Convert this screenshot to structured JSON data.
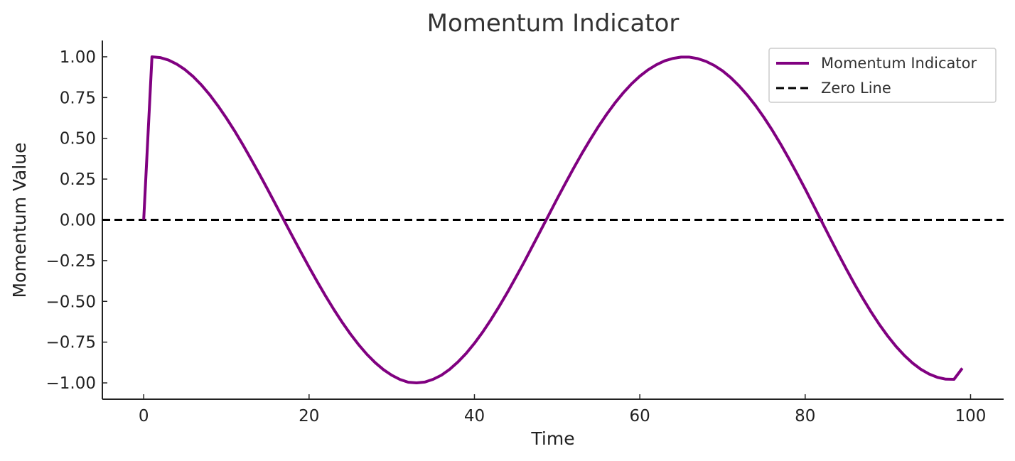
{
  "chart_data": {
    "type": "line",
    "title": "Momentum Indicator",
    "xlabel": "Time",
    "ylabel": "Momentum Value",
    "xlim": [
      -5,
      104
    ],
    "ylim": [
      -1.1,
      1.1
    ],
    "xticks": [
      0,
      20,
      40,
      60,
      80,
      100
    ],
    "yticks": [
      1.0,
      0.75,
      0.5,
      0.25,
      0.0,
      -0.25,
      -0.5,
      -0.75,
      -1.0
    ],
    "xtick_labels": [
      "0",
      "20",
      "40",
      "60",
      "80",
      "100"
    ],
    "ytick_labels": [
      "1.00",
      "0.75",
      "0.50",
      "0.25",
      "0.00",
      "−0.25",
      "−0.50",
      "−0.75",
      "−1.00"
    ],
    "grid": false,
    "legend_position": "top-right",
    "series": [
      {
        "name": "Momentum Indicator",
        "color": "#800080",
        "style": "solid",
        "x": [
          0,
          1,
          2,
          3,
          4,
          5,
          6,
          7,
          8,
          9,
          10,
          11,
          12,
          13,
          14,
          15,
          16,
          17,
          18,
          19,
          20,
          21,
          22,
          23,
          24,
          25,
          26,
          27,
          28,
          29,
          30,
          31,
          32,
          33,
          34,
          35,
          36,
          37,
          38,
          39,
          40,
          41,
          42,
          43,
          44,
          45,
          46,
          47,
          48,
          49,
          50,
          51,
          52,
          53,
          54,
          55,
          56,
          57,
          58,
          59,
          60,
          61,
          62,
          63,
          64,
          65,
          66,
          67,
          68,
          69,
          70,
          71,
          72,
          73,
          74,
          75,
          76,
          77,
          78,
          79,
          80,
          81,
          82,
          83,
          84,
          85,
          86,
          87,
          88,
          89,
          90,
          91,
          92,
          93,
          94,
          95,
          96,
          97,
          98,
          99
        ],
        "y": [
          0.0,
          1.0,
          0.995,
          0.98,
          0.955,
          0.921,
          0.878,
          0.826,
          0.766,
          0.698,
          0.624,
          0.545,
          0.46,
          0.371,
          0.28,
          0.186,
          0.09,
          -0.006,
          -0.102,
          -0.197,
          -0.29,
          -0.38,
          -0.467,
          -0.55,
          -0.628,
          -0.7,
          -0.766,
          -0.825,
          -0.876,
          -0.919,
          -0.953,
          -0.979,
          -0.996,
          -1.0,
          -0.995,
          -0.978,
          -0.953,
          -0.917,
          -0.872,
          -0.819,
          -0.757,
          -0.688,
          -0.612,
          -0.53,
          -0.444,
          -0.353,
          -0.26,
          -0.163,
          -0.066,
          0.031,
          0.129,
          0.224,
          0.317,
          0.407,
          0.492,
          0.573,
          0.648,
          0.717,
          0.779,
          0.834,
          0.881,
          0.92,
          0.951,
          0.975,
          0.99,
          0.998,
          0.998,
          0.989,
          0.972,
          0.947,
          0.914,
          0.872,
          0.822,
          0.765,
          0.701,
          0.629,
          0.551,
          0.467,
          0.378,
          0.285,
          0.189,
          0.09,
          -0.01,
          -0.11,
          -0.208,
          -0.304,
          -0.397,
          -0.484,
          -0.567,
          -0.644,
          -0.714,
          -0.777,
          -0.832,
          -0.879,
          -0.917,
          -0.946,
          -0.966,
          -0.977,
          -0.978,
          -0.91
        ]
      },
      {
        "name": "Zero Line",
        "color": "#000000",
        "style": "dashed",
        "x": [
          -5,
          104
        ],
        "y": [
          0,
          0
        ]
      }
    ]
  }
}
